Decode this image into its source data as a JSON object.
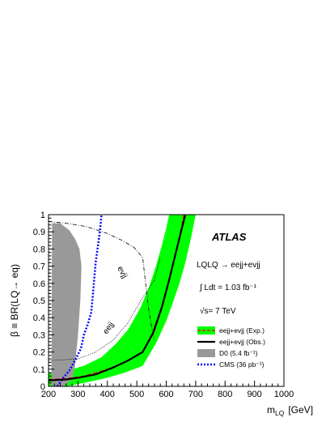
{
  "chart_data": {
    "type": "line",
    "xlabel_main": "m",
    "xlabel_sub": "LQ",
    "xlabel_unit": "[GeV]",
    "ylabel": "β ≡ BR(LQ→ eq)",
    "xlim": [
      200,
      1000
    ],
    "ylim": [
      0,
      1
    ],
    "x_ticks": [
      200,
      300,
      400,
      500,
      600,
      700,
      800,
      900,
      1000
    ],
    "y_ticks": [
      0,
      0.1,
      0.2,
      0.3,
      0.4,
      0.5,
      0.6,
      0.7,
      0.8,
      0.9,
      1
    ],
    "y_tick_labels": [
      "0",
      "0.1",
      "0.2",
      "0.3",
      "0.4",
      "0.5",
      "0.6",
      "0.7",
      "0.8",
      "0.9",
      "1"
    ],
    "grid": false,
    "legend_position": "bottom-right",
    "annotations": {
      "experiment": "ATLAS",
      "process": "LQLQ → eejj+evjj",
      "luminosity": "∫ Ldt = 1.03 fb⁻¹",
      "energy": "√s= 7 TeV",
      "evjj_label": "evjj",
      "eejj_label": "eejj"
    },
    "series": [
      {
        "name": "eejj+evjj (Exp.)",
        "color": "#ff0000",
        "band_color": "#00ff00",
        "points": [
          [
            200,
            0.04
          ],
          [
            260,
            0.045
          ],
          [
            320,
            0.06
          ],
          [
            400,
            0.1
          ],
          [
            460,
            0.14
          ],
          [
            520,
            0.2
          ],
          [
            560,
            0.32
          ],
          [
            590,
            0.48
          ],
          [
            610,
            0.62
          ],
          [
            630,
            0.76
          ],
          [
            645,
            0.87
          ],
          [
            660,
            1.0
          ]
        ],
        "band_low": [
          [
            200,
            0.0
          ],
          [
            260,
            0.0
          ],
          [
            320,
            0.02
          ],
          [
            400,
            0.05
          ],
          [
            460,
            0.08
          ],
          [
            520,
            0.12
          ],
          [
            565,
            0.25
          ],
          [
            600,
            0.38
          ],
          [
            625,
            0.5
          ],
          [
            645,
            0.6
          ],
          [
            665,
            0.72
          ],
          [
            685,
            0.87
          ],
          [
            700,
            1.0
          ]
        ],
        "band_high": [
          [
            200,
            0.08
          ],
          [
            260,
            0.09
          ],
          [
            320,
            0.12
          ],
          [
            380,
            0.17
          ],
          [
            430,
            0.25
          ],
          [
            470,
            0.33
          ],
          [
            510,
            0.45
          ],
          [
            540,
            0.57
          ],
          [
            565,
            0.7
          ],
          [
            585,
            0.82
          ],
          [
            600,
            0.92
          ],
          [
            610,
            1.0
          ]
        ]
      },
      {
        "name": "eejj+evjj (Obs.)",
        "color": "#000000",
        "points": [
          [
            200,
            0.035
          ],
          [
            260,
            0.04
          ],
          [
            300,
            0.05
          ],
          [
            360,
            0.07
          ],
          [
            420,
            0.11
          ],
          [
            470,
            0.15
          ],
          [
            520,
            0.2
          ],
          [
            555,
            0.31
          ],
          [
            585,
            0.46
          ],
          [
            610,
            0.62
          ],
          [
            630,
            0.76
          ],
          [
            650,
            0.9
          ],
          [
            665,
            1.0
          ]
        ]
      },
      {
        "name": "D0 (5.4 fb⁻¹)",
        "color": "#999999",
        "points": [
          [
            210,
            0.0
          ],
          [
            250,
            0.0
          ],
          [
            280,
            0.04
          ],
          [
            290,
            0.12
          ],
          [
            300,
            0.3
          ],
          [
            308,
            0.5
          ],
          [
            312,
            0.7
          ],
          [
            305,
            0.8
          ],
          [
            290,
            0.86
          ],
          [
            270,
            0.91
          ],
          [
            240,
            0.95
          ],
          [
            212,
            0.95
          ],
          [
            210,
            0.0
          ]
        ]
      },
      {
        "name": "CMS (36 pb⁻¹)",
        "color": "#0000ff",
        "points": [
          [
            230,
            0.0
          ],
          [
            250,
            0.05
          ],
          [
            270,
            0.09
          ],
          [
            290,
            0.15
          ],
          [
            310,
            0.22
          ],
          [
            320,
            0.3
          ],
          [
            335,
            0.37
          ],
          [
            345,
            0.43
          ],
          [
            350,
            0.52
          ],
          [
            355,
            0.62
          ],
          [
            360,
            0.72
          ],
          [
            368,
            0.82
          ],
          [
            375,
            0.91
          ],
          [
            380,
            1.0
          ]
        ]
      },
      {
        "name": "eejj",
        "color": "#000000",
        "points": [
          [
            200,
            0.15
          ],
          [
            300,
            0.16
          ],
          [
            360,
            0.2
          ],
          [
            420,
            0.27
          ],
          [
            470,
            0.37
          ],
          [
            510,
            0.49
          ],
          [
            540,
            0.57
          ],
          [
            560,
            0.62
          ],
          [
            580,
            0.75
          ]
        ]
      },
      {
        "name": "evjj",
        "color": "#000000",
        "points": [
          [
            200,
            0.96
          ],
          [
            260,
            0.95
          ],
          [
            330,
            0.93
          ],
          [
            400,
            0.89
          ],
          [
            450,
            0.85
          ],
          [
            490,
            0.81
          ],
          [
            520,
            0.75
          ],
          [
            530,
            0.6
          ],
          [
            540,
            0.45
          ],
          [
            550,
            0.35
          ],
          [
            560,
            0.27
          ]
        ]
      }
    ]
  }
}
